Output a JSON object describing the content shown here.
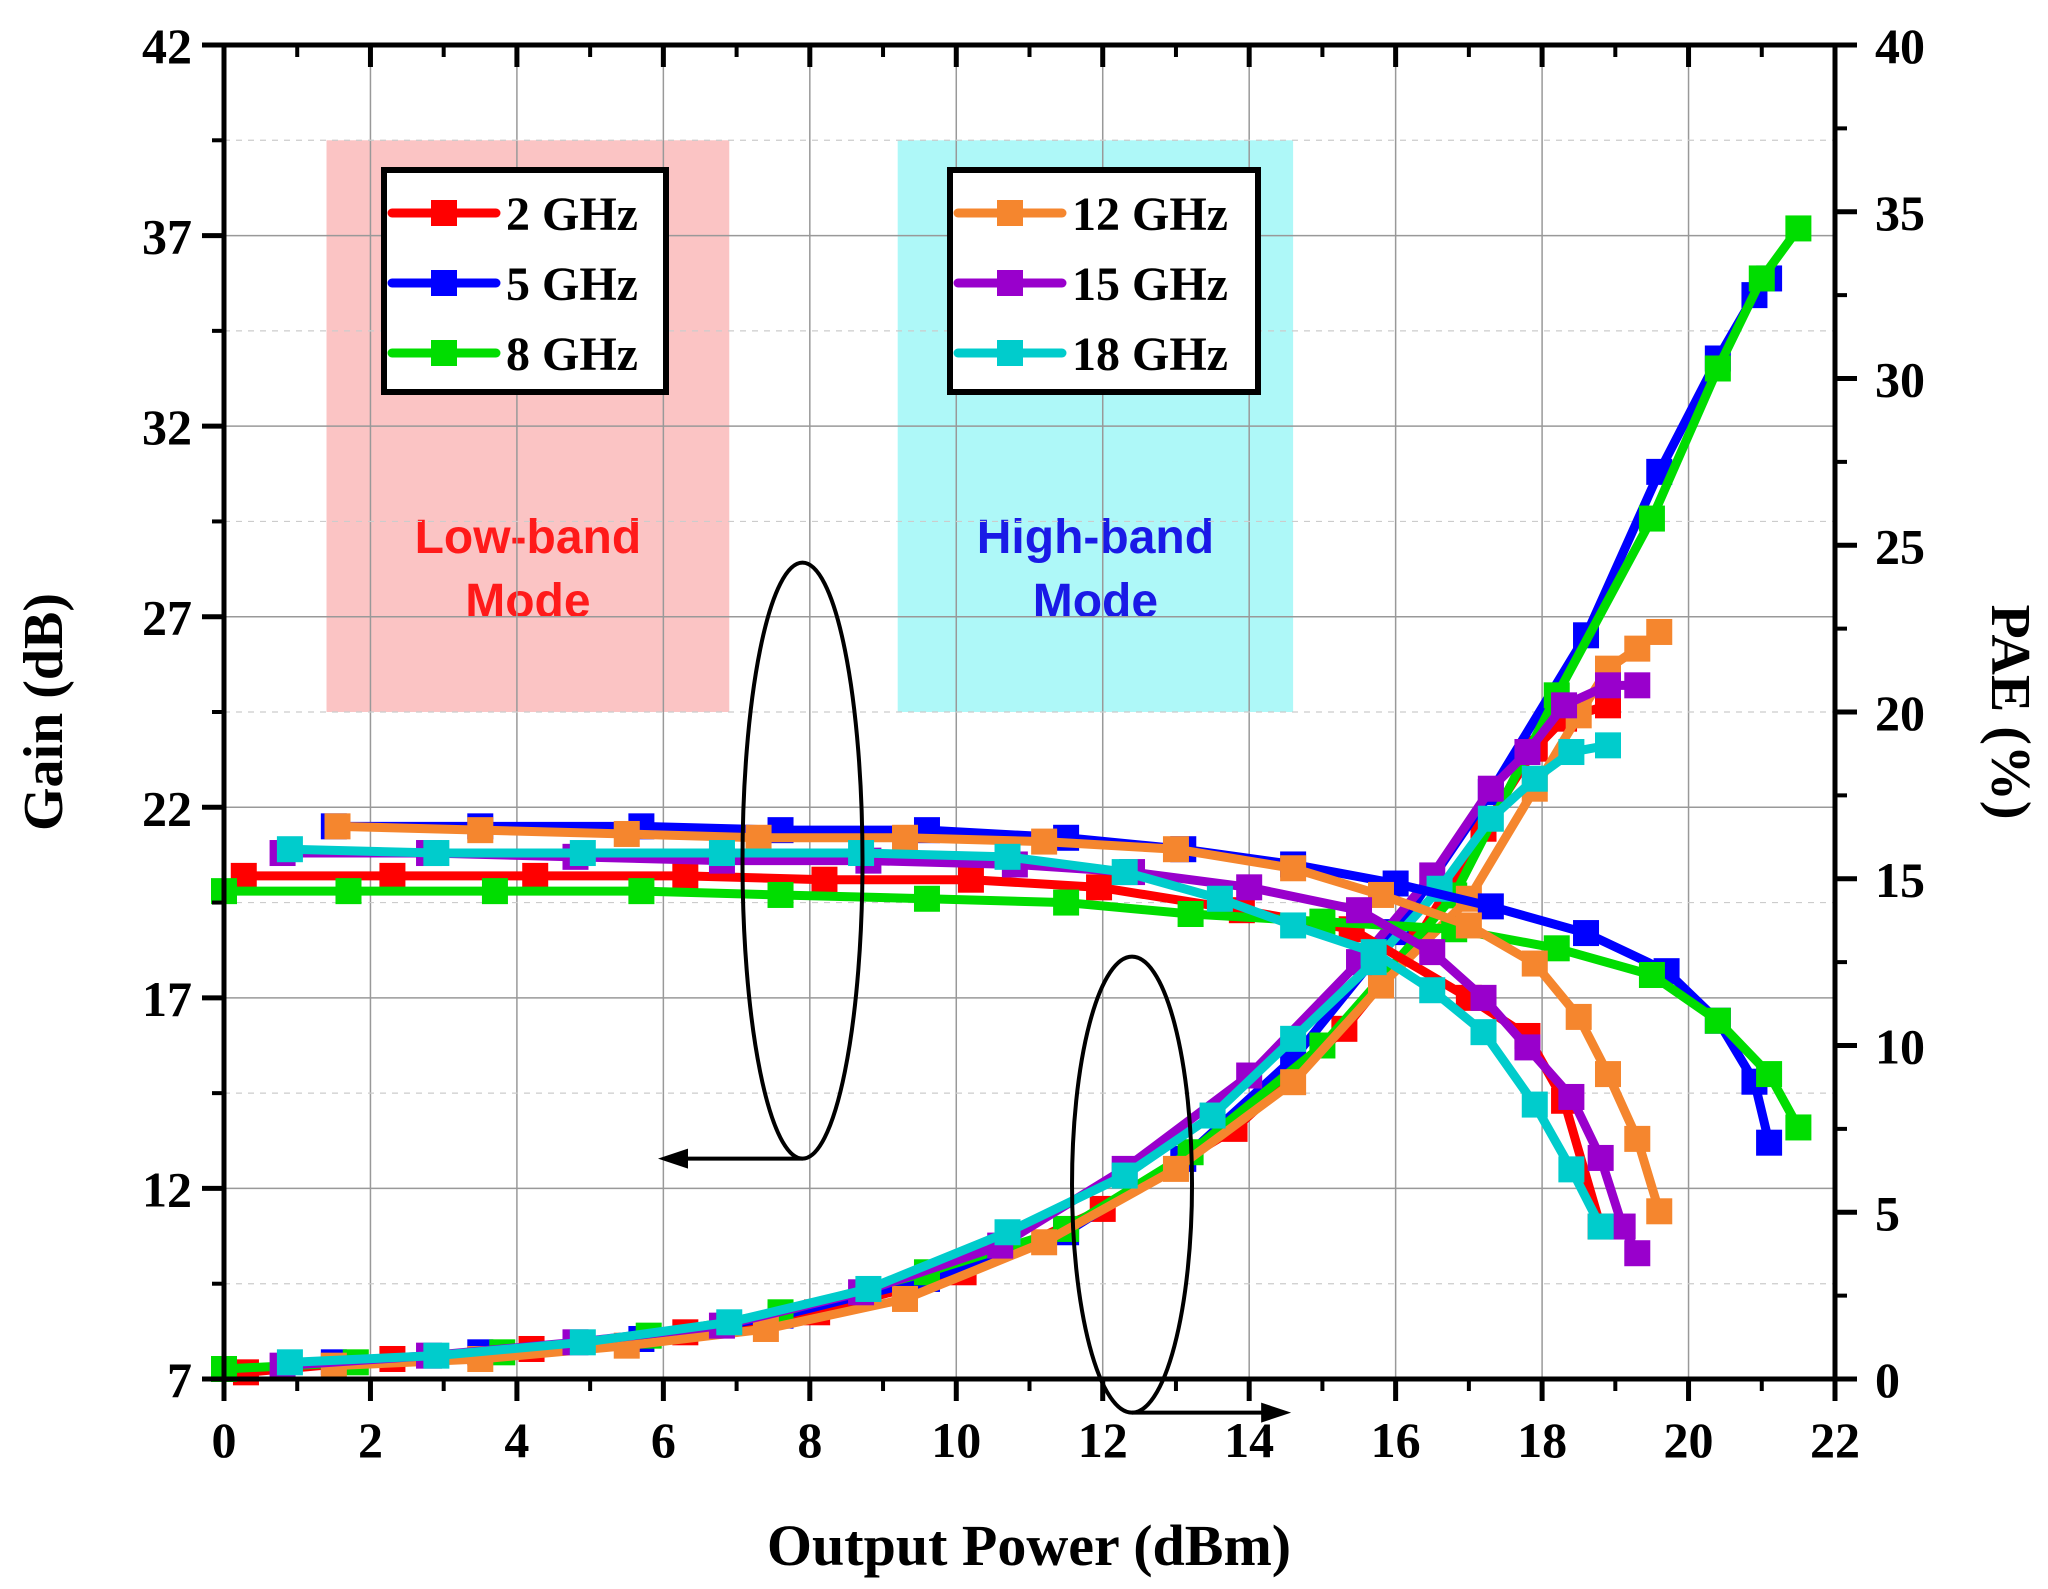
{
  "chart_data": {
    "type": "line",
    "xlabel": "Output Power (dBm)",
    "ylabel": "Gain (dB)",
    "y2label": "PAE (%)",
    "xlim": [
      0,
      22
    ],
    "ylim": [
      7,
      42
    ],
    "y2lim": [
      0,
      40
    ],
    "xticks": [
      0,
      2,
      4,
      6,
      8,
      10,
      12,
      14,
      16,
      18,
      20,
      22
    ],
    "yticks": [
      7,
      12,
      17,
      22,
      27,
      32,
      37,
      42
    ],
    "y2ticks": [
      0,
      5,
      10,
      15,
      20,
      25,
      30,
      35,
      40
    ],
    "grid": true,
    "legends": [
      {
        "position": "top-left",
        "entries": [
          "2 GHz",
          "5 GHz",
          "8 GHz"
        ]
      },
      {
        "position": "top-center",
        "entries": [
          "12 GHz",
          "15 GHz",
          "18 GHz"
        ]
      }
    ],
    "regions": [
      {
        "label_line1": "Low-band",
        "label_line2": "Mode",
        "x_range": [
          1.4,
          6.9
        ],
        "y_range": [
          24.5,
          39.5
        ],
        "fill": "#fbc4c4",
        "text_color": "#ff1a1a"
      },
      {
        "label_line1": "High-band",
        "label_line2": "Mode",
        "x_range": [
          9.2,
          14.6
        ],
        "y_range": [
          24.5,
          39.5
        ],
        "fill": "#aef8f8",
        "text_color": "#1a1ae6"
      }
    ],
    "annotations": [
      {
        "type": "ellipse",
        "target": "Gain",
        "center_x": 7.9,
        "center_gain": 20.6,
        "arrow": "left",
        "arrow_to_x": 6.2
      },
      {
        "type": "ellipse",
        "target": "PAE",
        "center_x": 12.4,
        "center_gain": 12.1,
        "arrow": "right",
        "arrow_to_x": 14.3
      }
    ],
    "series": [
      {
        "name": "2 GHz",
        "color": "#ff0000",
        "axis": "gain",
        "x": [
          0.27,
          2.3,
          4.25,
          6.3,
          8.2,
          10.2,
          11.95,
          13.9,
          15.4,
          17.0,
          17.8,
          18.3,
          18.8
        ],
        "values": [
          20.2,
          20.2,
          20.2,
          20.2,
          20.1,
          20.1,
          19.9,
          19.3,
          18.8,
          17.0,
          16.0,
          14.3,
          11.0
        ]
      },
      {
        "name": "5 GHz",
        "color": "#0000ff",
        "axis": "gain",
        "x": [
          1.5,
          3.5,
          5.7,
          7.6,
          9.6,
          11.5,
          13.1,
          14.6,
          16.0,
          17.3,
          18.6,
          19.7,
          20.4,
          20.9,
          21.1
        ],
        "values": [
          21.5,
          21.5,
          21.5,
          21.4,
          21.4,
          21.2,
          20.9,
          20.5,
          20.0,
          19.4,
          18.7,
          17.7,
          16.4,
          14.8,
          13.2
        ]
      },
      {
        "name": "8 GHz",
        "color": "#00dd00",
        "axis": "gain",
        "x": [
          0.0,
          1.7,
          3.7,
          5.7,
          7.6,
          9.6,
          11.5,
          13.2,
          15.0,
          16.8,
          18.2,
          19.5,
          20.4,
          21.1,
          21.5
        ],
        "values": [
          19.8,
          19.8,
          19.8,
          19.8,
          19.7,
          19.6,
          19.5,
          19.2,
          19.0,
          18.8,
          18.3,
          17.6,
          16.4,
          15.0,
          13.6
        ]
      },
      {
        "name": "12 GHz",
        "color": "#f5862e",
        "axis": "gain",
        "x": [
          1.55,
          3.5,
          5.5,
          7.3,
          9.3,
          11.2,
          13.0,
          14.6,
          15.8,
          17.0,
          17.9,
          18.5,
          18.9,
          19.3,
          19.6
        ],
        "values": [
          21.5,
          21.4,
          21.3,
          21.2,
          21.2,
          21.1,
          20.9,
          20.4,
          19.7,
          18.9,
          17.9,
          16.5,
          15.0,
          13.3,
          11.4
        ]
      },
      {
        "name": "15 GHz",
        "color": "#9900cc",
        "axis": "gain",
        "x": [
          0.8,
          2.8,
          4.8,
          6.8,
          8.8,
          10.8,
          12.4,
          14.0,
          15.5,
          16.5,
          17.2,
          17.8,
          18.4,
          18.8,
          19.1,
          19.3
        ],
        "values": [
          20.8,
          20.8,
          20.7,
          20.6,
          20.6,
          20.5,
          20.3,
          19.9,
          19.3,
          18.2,
          17.0,
          15.7,
          14.4,
          12.8,
          11.0,
          10.3
        ]
      },
      {
        "name": "18 GHz",
        "color": "#00cccc",
        "axis": "gain",
        "x": [
          0.9,
          2.9,
          4.9,
          6.8,
          8.7,
          10.7,
          12.3,
          13.6,
          14.6,
          15.7,
          16.5,
          17.2,
          17.9,
          18.4,
          18.8
        ],
        "values": [
          20.9,
          20.8,
          20.8,
          20.8,
          20.8,
          20.7,
          20.3,
          19.6,
          18.9,
          18.2,
          17.2,
          16.1,
          14.2,
          12.5,
          11.0
        ]
      },
      {
        "name": "2 GHz",
        "color": "#ff0000",
        "axis": "pae",
        "x": [
          0.3,
          2.3,
          4.2,
          6.3,
          8.1,
          10.1,
          12.0,
          13.8,
          15.3,
          16.3,
          17.2,
          17.9,
          18.3,
          18.9
        ],
        "values": [
          0.2,
          0.6,
          0.9,
          1.4,
          2.0,
          3.2,
          5.1,
          7.5,
          10.5,
          13.2,
          16.5,
          18.9,
          19.8,
          20.2
        ]
      },
      {
        "name": "5 GHz",
        "color": "#0000ff",
        "axis": "pae",
        "x": [
          1.5,
          3.5,
          5.7,
          7.6,
          9.6,
          11.5,
          13.1,
          14.6,
          16.0,
          17.3,
          18.6,
          19.6,
          20.4,
          20.9,
          21.1
        ],
        "values": [
          0.5,
          0.8,
          1.2,
          1.9,
          3.0,
          4.4,
          6.6,
          9.6,
          13.4,
          17.6,
          22.3,
          27.2,
          30.6,
          32.5,
          33.0
        ]
      },
      {
        "name": "8 GHz",
        "color": "#00dd00",
        "axis": "pae",
        "x": [
          0.0,
          1.8,
          3.8,
          5.8,
          7.6,
          9.6,
          11.5,
          13.2,
          15.0,
          16.8,
          18.2,
          19.5,
          20.4,
          21.0,
          21.5
        ],
        "values": [
          0.3,
          0.5,
          0.8,
          1.3,
          2.0,
          3.2,
          4.5,
          6.8,
          10.0,
          14.5,
          20.5,
          25.8,
          30.3,
          33.0,
          34.5
        ]
      },
      {
        "name": "12 GHz",
        "color": "#f5862e",
        "axis": "pae",
        "x": [
          1.5,
          3.5,
          5.5,
          7.4,
          9.3,
          11.2,
          13.0,
          14.6,
          15.8,
          17.0,
          17.9,
          18.5,
          18.9,
          19.3,
          19.6
        ],
        "values": [
          0.4,
          0.6,
          1.0,
          1.5,
          2.4,
          4.1,
          6.3,
          8.9,
          11.8,
          14.4,
          17.7,
          19.9,
          21.3,
          21.9,
          22.4
        ]
      },
      {
        "name": "15 GHz",
        "color": "#9900cc",
        "axis": "pae",
        "x": [
          0.8,
          2.8,
          4.8,
          6.8,
          8.7,
          10.6,
          12.3,
          14.0,
          15.5,
          16.5,
          17.3,
          17.8,
          18.3,
          18.9,
          19.3
        ],
        "values": [
          0.4,
          0.7,
          1.1,
          1.6,
          2.6,
          4.0,
          6.3,
          9.1,
          12.5,
          15.1,
          17.7,
          18.8,
          20.2,
          20.8,
          20.8
        ]
      },
      {
        "name": "18 GHz",
        "color": "#00cccc",
        "axis": "pae",
        "x": [
          0.9,
          2.9,
          4.9,
          6.9,
          8.8,
          10.7,
          12.3,
          13.5,
          14.6,
          15.7,
          16.6,
          17.3,
          17.9,
          18.4,
          18.9
        ],
        "values": [
          0.5,
          0.7,
          1.1,
          1.7,
          2.7,
          4.4,
          6.1,
          7.9,
          10.2,
          12.5,
          14.7,
          16.8,
          18.0,
          18.8,
          19.0
        ]
      }
    ]
  }
}
